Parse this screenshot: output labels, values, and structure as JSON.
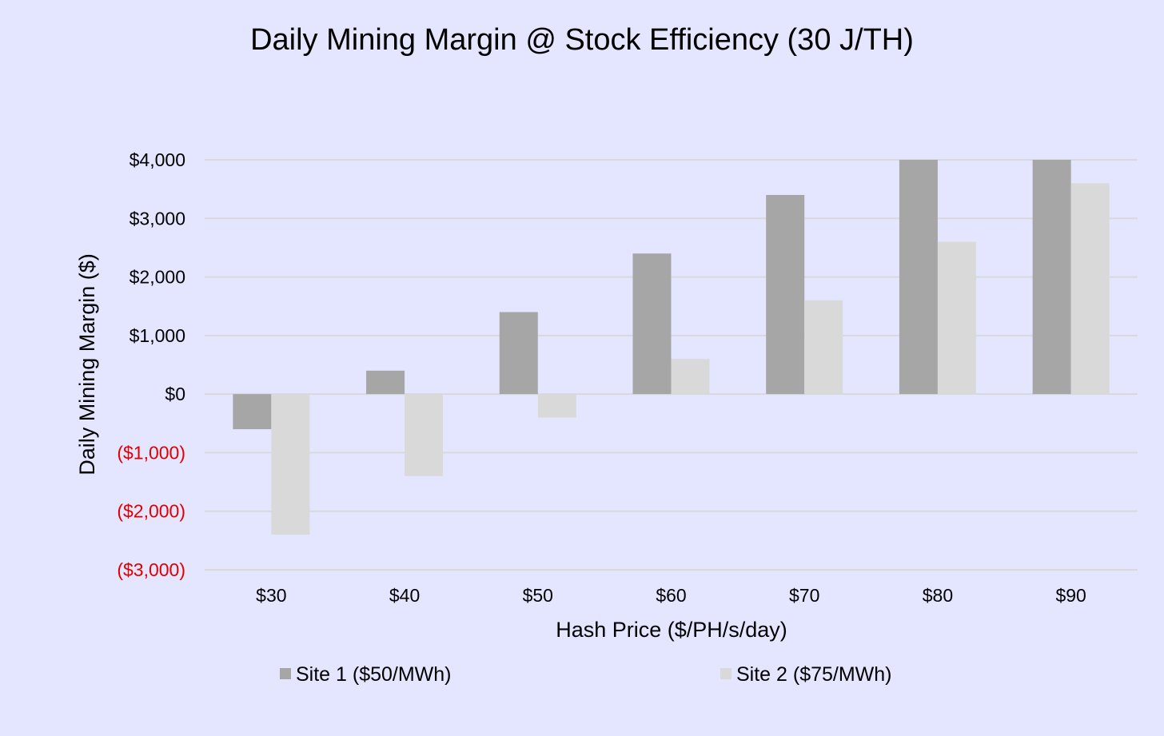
{
  "chart_data": {
    "type": "bar",
    "title": "Daily Mining Margin @ Stock Efficiency (30 J/TH)",
    "xlabel": "Hash Price ($/PH/s/day)",
    "ylabel": "Daily Mining Margin ($)",
    "categories": [
      "$30",
      "$40",
      "$50",
      "$60",
      "$70",
      "$80",
      "$90"
    ],
    "series": [
      {
        "name": "Site 1 ($50/MWh)",
        "color": "#a6a6a6",
        "values": [
          -600,
          400,
          1400,
          2400,
          3400,
          4000,
          4000
        ]
      },
      {
        "name": "Site 2 ($75/MWh)",
        "color": "#d9d9d9",
        "values": [
          -2400,
          -1400,
          -400,
          600,
          1600,
          2600,
          3600
        ]
      }
    ],
    "ylim": [
      -3000,
      4000
    ],
    "yticks": [
      4000,
      3000,
      2000,
      1000,
      0,
      -1000,
      -2000,
      -3000
    ],
    "ytick_labels": [
      "$4,000",
      "$3,000",
      "$2,000",
      "$1,000",
      "$0",
      "($1,000)",
      "($2,000)",
      "($3,000)"
    ],
    "negative_label_color": "#e00000",
    "gridlines": true,
    "legend_position": "bottom"
  }
}
